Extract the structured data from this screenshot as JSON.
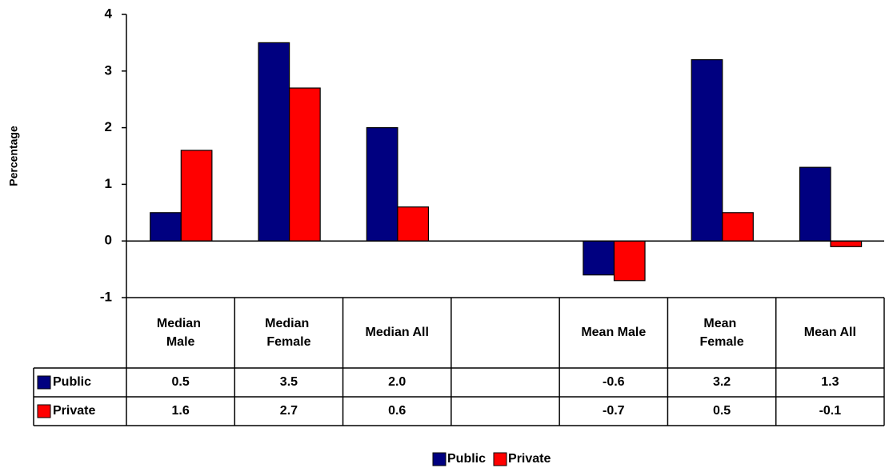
{
  "chart_data": {
    "type": "bar",
    "y_label": "Percentage",
    "categories": [
      "Median Male",
      "Median Female",
      "Median All",
      null,
      "Mean Male",
      "Mean Female",
      "Mean All"
    ],
    "series": [
      {
        "name": "Public",
        "color": "#000080",
        "values": [
          0.5,
          3.5,
          2.0,
          null,
          -0.6,
          3.2,
          1.3
        ],
        "value_labels": [
          "0.5",
          "3.5",
          "2.0",
          null,
          "-0.6",
          "3.2",
          "1.3"
        ]
      },
      {
        "name": "Private",
        "color": "#ff0000",
        "values": [
          1.6,
          2.7,
          0.6,
          null,
          -0.7,
          0.5,
          -0.1
        ],
        "value_labels": [
          "1.6",
          "2.7",
          "0.6",
          null,
          "-0.7",
          "0.5",
          "-0.1"
        ]
      }
    ],
    "ylim": [
      -1,
      4
    ],
    "yticks": [
      -1,
      0,
      1,
      2,
      3,
      4
    ],
    "grid": false,
    "legend": "bottom"
  }
}
